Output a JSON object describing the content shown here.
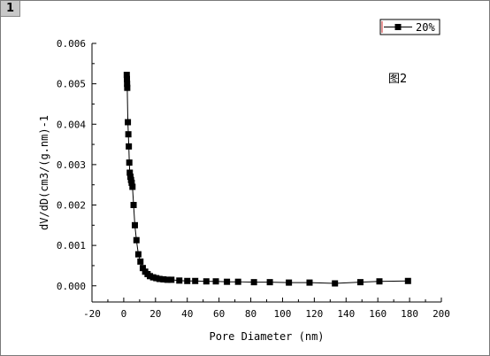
{
  "page": {
    "tab_label": "1"
  },
  "chart_data": {
    "type": "scatter",
    "title": "",
    "annotation": "图2",
    "xlabel": "Pore Diameter (nm)",
    "ylabel": "dV/dD(cm3/(g.nm)-1",
    "xlim": [
      -20,
      200
    ],
    "ylim": [
      -0.0004,
      0.006
    ],
    "x_ticks": [
      "-20",
      "0",
      "20",
      "40",
      "60",
      "80",
      "100",
      "120",
      "140",
      "160",
      "180",
      "200"
    ],
    "y_ticks": [
      "0.000",
      "0.001",
      "0.002",
      "0.003",
      "0.004",
      "0.005",
      "0.006"
    ],
    "grid": false,
    "legend_position": "top-right",
    "series": [
      {
        "name": "20%",
        "color": "#000000",
        "marker": "square",
        "connected": true,
        "points": [
          [
            1.9,
            0.00522
          ],
          [
            2.0,
            0.00512
          ],
          [
            2.1,
            0.005
          ],
          [
            2.2,
            0.0049
          ],
          [
            2.6,
            0.00405
          ],
          [
            2.9,
            0.00375
          ],
          [
            3.2,
            0.00345
          ],
          [
            3.5,
            0.00305
          ],
          [
            3.8,
            0.0028
          ],
          [
            4.2,
            0.0027
          ],
          [
            4.6,
            0.00262
          ],
          [
            5.0,
            0.00255
          ],
          [
            5.5,
            0.00245
          ],
          [
            6.2,
            0.002
          ],
          [
            7.0,
            0.0015
          ],
          [
            8.0,
            0.00113
          ],
          [
            9.2,
            0.00078
          ],
          [
            10.5,
            0.0006
          ],
          [
            12.0,
            0.00044
          ],
          [
            13.5,
            0.00035
          ],
          [
            15.0,
            0.00029
          ],
          [
            16.5,
            0.00024
          ],
          [
            18.5,
            0.00021
          ],
          [
            20.5,
            0.00019
          ],
          [
            22.5,
            0.00017
          ],
          [
            25.0,
            0.00016
          ],
          [
            27.5,
            0.00015
          ],
          [
            30.0,
            0.00015
          ],
          [
            35.0,
            0.00013
          ],
          [
            40.0,
            0.00012
          ],
          [
            45.0,
            0.00012
          ],
          [
            52.0,
            0.00011
          ],
          [
            58.0,
            0.00011
          ],
          [
            65.0,
            0.0001
          ],
          [
            72.0,
            0.0001
          ],
          [
            82.0,
            9e-05
          ],
          [
            92.0,
            9e-05
          ],
          [
            104.0,
            8e-05
          ],
          [
            117.0,
            8e-05
          ],
          [
            133.0,
            6e-05
          ],
          [
            149.0,
            9e-05
          ],
          [
            161.0,
            0.00011
          ],
          [
            179.0,
            0.00012
          ]
        ]
      }
    ]
  }
}
